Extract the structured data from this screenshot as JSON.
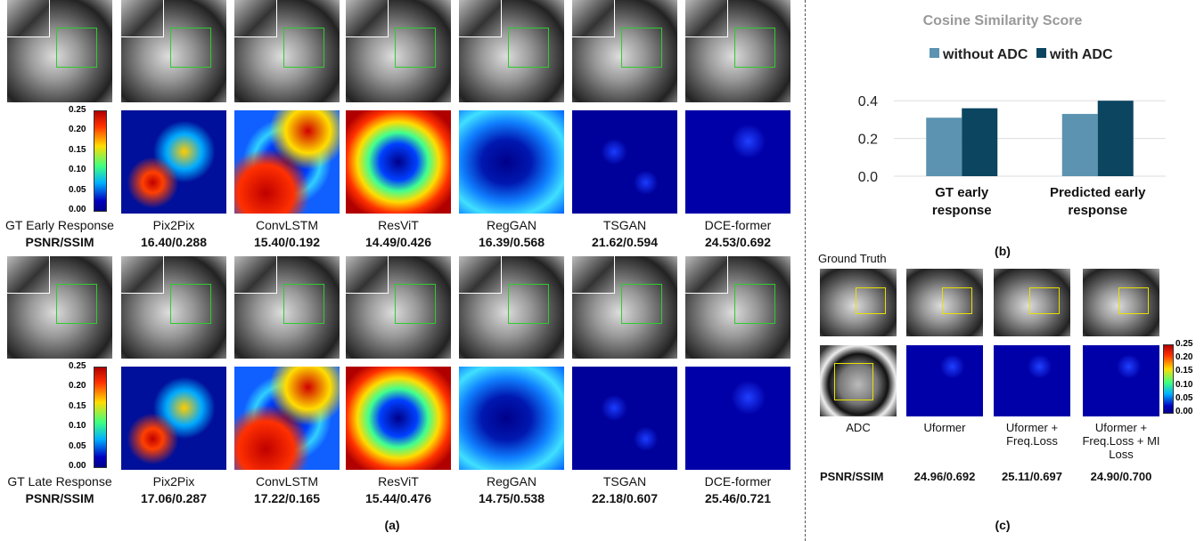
{
  "panel_a": {
    "label": "(a)",
    "colorbar_ticks": [
      "0.25",
      "0.20",
      "0.15",
      "0.10",
      "0.05",
      "0.00"
    ],
    "rows": [
      {
        "row_label": "GT Early Response",
        "metric_label": "PSNR/SSIM",
        "methods": [
          {
            "name": "Pix2Pix",
            "score": "16.40/0.288"
          },
          {
            "name": "ConvLSTM",
            "score": "15.40/0.192"
          },
          {
            "name": "ResViT",
            "score": "14.49/0.426"
          },
          {
            "name": "RegGAN",
            "score": "16.39/0.568"
          },
          {
            "name": "TSGAN",
            "score": "21.62/0.594"
          },
          {
            "name": "DCE-former",
            "score": "24.53/0.692"
          }
        ]
      },
      {
        "row_label": "GT Late Response",
        "metric_label": "PSNR/SSIM",
        "methods": [
          {
            "name": "Pix2Pix",
            "score": "17.06/0.287"
          },
          {
            "name": "ConvLSTM",
            "score": "17.22/0.165"
          },
          {
            "name": "ResViT",
            "score": "15.44/0.476"
          },
          {
            "name": "RegGAN",
            "score": "14.75/0.538"
          },
          {
            "name": "TSGAN",
            "score": "22.18/0.607"
          },
          {
            "name": "DCE-former",
            "score": "25.46/0.721"
          }
        ]
      }
    ]
  },
  "chart_data": {
    "type": "bar",
    "title": "Cosine Similarity Score",
    "panel_label": "(b)",
    "categories": [
      "GT early response",
      "Predicted early response"
    ],
    "series": [
      {
        "name": "without ADC",
        "color": "#5b93b1",
        "values": [
          0.31,
          0.33
        ]
      },
      {
        "name": "with ADC",
        "color": "#0b4560",
        "values": [
          0.36,
          0.4
        ]
      }
    ],
    "ylim": [
      0,
      0.5
    ],
    "yticks": [
      {
        "value": 0,
        "label": "0.0"
      },
      0.2,
      0.4
    ],
    "grid": true,
    "legend": "top"
  },
  "panel_c": {
    "label": "(c)",
    "ground_truth_label": "Ground Truth",
    "metric_label": "PSNR/SSIM",
    "colorbar_ticks": [
      "0.25",
      "0.20",
      "0.15",
      "0.10",
      "0.05",
      "0.00"
    ],
    "columns": [
      {
        "name": "ADC"
      },
      {
        "name": "Uformer",
        "score": "24.96/0.692"
      },
      {
        "name": "Uformer + Freq.Loss",
        "score": "25.11/0.697"
      },
      {
        "name": "Uformer + Freq.Loss + MI Loss",
        "score": "24.90/0.700"
      }
    ]
  }
}
